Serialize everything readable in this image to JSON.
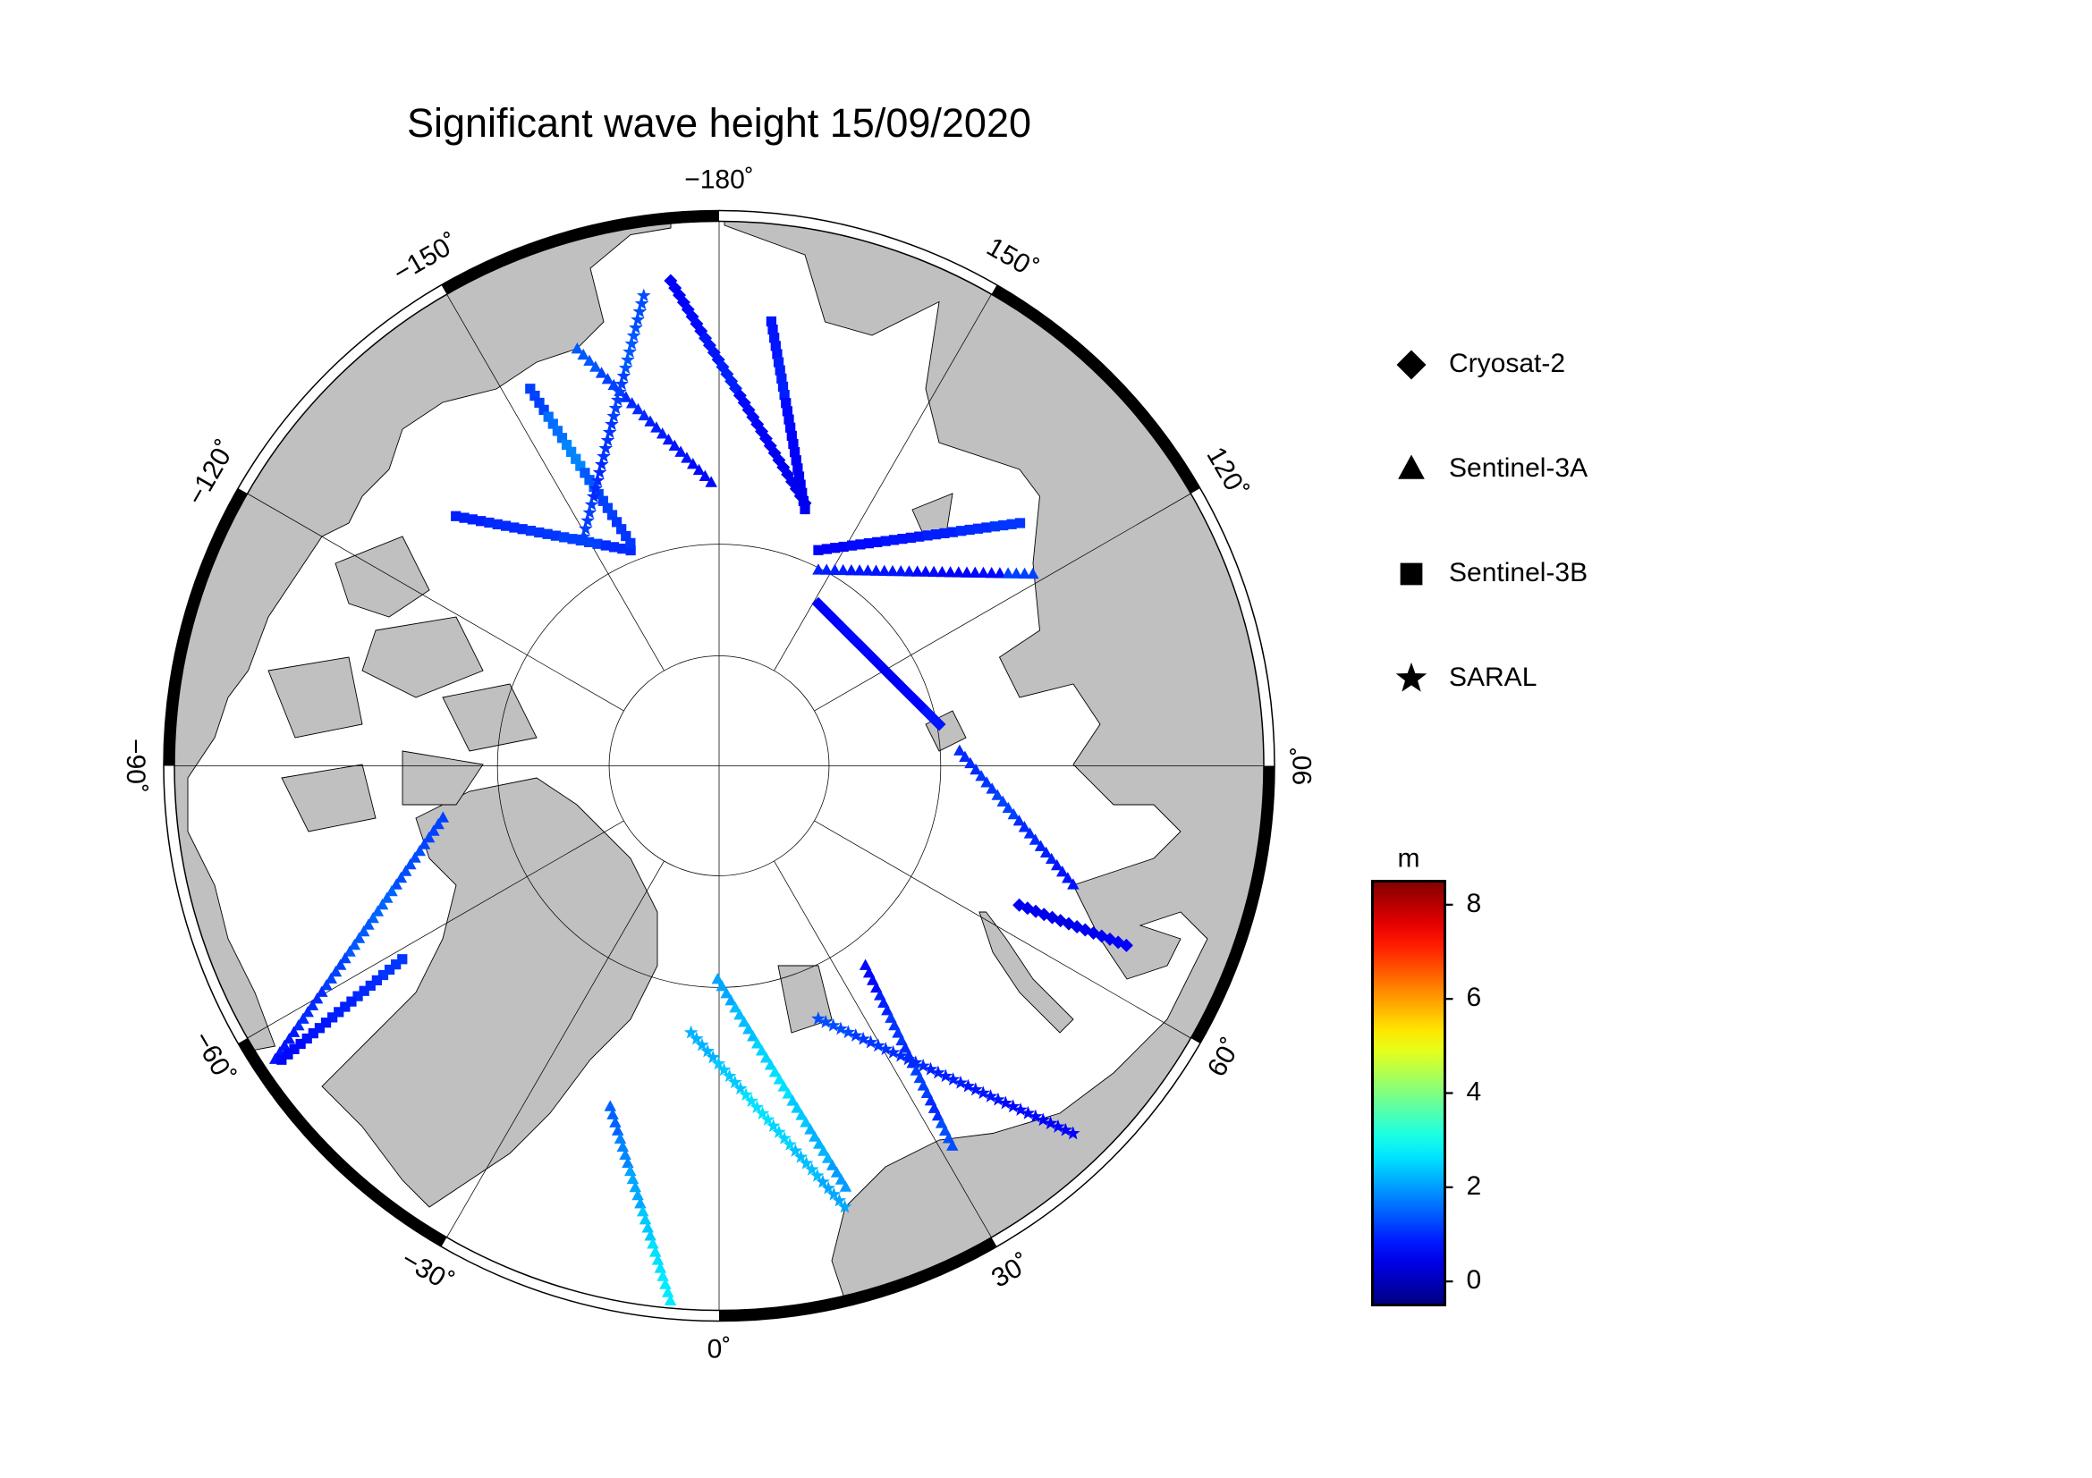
{
  "chart_data": {
    "type": "map",
    "title": "Significant wave height 15/09/2020",
    "lon_ticks": [
      {
        "value": -180,
        "label": "−180˚"
      },
      {
        "value": -150,
        "label": "−150˚"
      },
      {
        "value": -120,
        "label": "−120˚"
      },
      {
        "value": -90,
        "label": "−90˚"
      },
      {
        "value": -60,
        "label": "−60˚"
      },
      {
        "value": -30,
        "label": "−30˚"
      },
      {
        "value": 0,
        "label": "0˚"
      },
      {
        "value": 30,
        "label": "30˚"
      },
      {
        "value": 60,
        "label": "60˚"
      },
      {
        "value": 90,
        "label": "90˚"
      },
      {
        "value": 120,
        "label": "120˚"
      },
      {
        "value": 150,
        "label": "150˚"
      }
    ],
    "lat_grid": [
      70,
      80
    ],
    "colorbar_label": "m",
    "clim": [
      -0.5,
      8.5
    ],
    "cticks": [
      0,
      2,
      4,
      6,
      8
    ],
    "colormap": "jet",
    "legend_color": "#000000",
    "series": [
      {
        "name": "Cryosat-2",
        "marker": "diamond",
        "tracks": [
          {
            "start": [
              -174.3,
              47.6
            ],
            "end": [
              161.9,
              65.2
            ],
            "values": [
              0.6,
              0.7,
              0.8,
              0.9,
              0.7,
              0.6,
              0.5,
              0.5
            ]
          },
          {
            "start": [
              148.5,
              72.8
            ],
            "end": [
              100.7,
              69.8
            ],
            "values": [
              0.6,
              0.7,
              0.6,
              0.5,
              0.6,
              0.8
            ]
          },
          {
            "start": [
              65.1,
              60.5
            ],
            "end": [
              66.2,
              51.0
            ],
            "values": [
              0.5,
              0.4,
              0.5,
              0.6
            ]
          }
        ]
      },
      {
        "name": "Sentinel-3A",
        "marker": "triangle",
        "tracks": [
          {
            "start": [
              -161.2,
              51.4
            ],
            "end": [
              -178.4,
              64.6
            ],
            "values": [
              1.4,
              1.2,
              1.0,
              0.9,
              0.8,
              0.7
            ]
          },
          {
            "start": [
              153.1,
              70.2
            ],
            "end": [
              121.4,
              57.4
            ],
            "values": [
              0.9,
              0.8,
              0.8,
              0.7,
              0.6,
              0.7,
              1.2
            ]
          },
          {
            "start": [
              93.5,
              68.3
            ],
            "end": [
              71.4,
              56.9
            ],
            "values": [
              1.0,
              1.1,
              1.2,
              1.0,
              0.9,
              0.8
            ]
          },
          {
            "start": [
              36.2,
              67.7
            ],
            "end": [
              31.5,
              50.9
            ],
            "values": [
              0.7,
              0.9,
              1.1,
              1.0,
              1.2,
              1.0,
              1.3
            ]
          },
          {
            "start": [
              -0.4,
              70.7
            ],
            "end": [
              16.7,
              51.4
            ],
            "values": [
              2.1,
              2.3,
              2.5,
              2.6,
              2.4,
              2.2,
              2.0
            ]
          },
          {
            "start": [
              -17.7,
              58.2
            ],
            "end": [
              -5.2,
              43.7
            ],
            "values": [
              1.5,
              1.8,
              2.1,
              2.4,
              2.6,
              2.7
            ]
          },
          {
            "start": [
              -79.3,
              64.8
            ],
            "end": [
              -56.5,
              44.1
            ],
            "values": [
              1.2,
              1.3,
              1.5,
              1.4,
              1.2,
              1.0,
              0.8
            ]
          }
        ]
      },
      {
        "name": "Sentinel-3B",
        "marker": "square",
        "tracks": [
          {
            "start": [
              173.3,
              50.8
            ],
            "end": [
              161.5,
              65.7
            ],
            "values": [
              0.8,
              0.9,
              0.7,
              0.6,
              0.5
            ]
          },
          {
            "start": [
              155.3,
              68.6
            ],
            "end": [
              128.9,
              55.8
            ],
            "values": [
              0.6,
              0.7,
              0.8,
              0.9,
              1.0,
              1.1
            ]
          },
          {
            "start": [
              -58.6,
              57.1
            ],
            "end": [
              -56.1,
              44.5
            ],
            "values": [
              1.1,
              1.0,
              0.9,
              0.8,
              0.7
            ]
          },
          {
            "start": [
              -133.5,
              57.8
            ],
            "end": [
              -157.7,
              69.0
            ],
            "values": [
              0.9,
              1.0,
              1.1,
              1.2,
              1.0
            ]
          },
          {
            "start": [
              -153.4,
              52.9
            ],
            "end": [
              -158.3,
              68.4
            ],
            "values": [
              1.2,
              1.6,
              1.8,
              1.4,
              1.2,
              1.1
            ]
          }
        ]
      },
      {
        "name": "SARAL",
        "marker": "star",
        "tracks": [
          {
            "start": [
              -170.9,
              48.5
            ],
            "end": [
              -149.4,
              66.1
            ],
            "values": [
              1.3,
              1.4,
              1.2,
              1.1,
              1.0,
              1.2
            ]
          },
          {
            "start": [
              21.4,
              65.6
            ],
            "end": [
              43.9,
              45.8
            ],
            "values": [
              1.3,
              1.1,
              1.0,
              0.9,
              0.8,
              0.7,
              0.6
            ]
          },
          {
            "start": [
              -6.0,
              65.9
            ],
            "end": [
              15.9,
              49.9
            ],
            "values": [
              2.2,
              2.4,
              2.6,
              2.5,
              2.3,
              2.1
            ]
          }
        ]
      }
    ]
  }
}
